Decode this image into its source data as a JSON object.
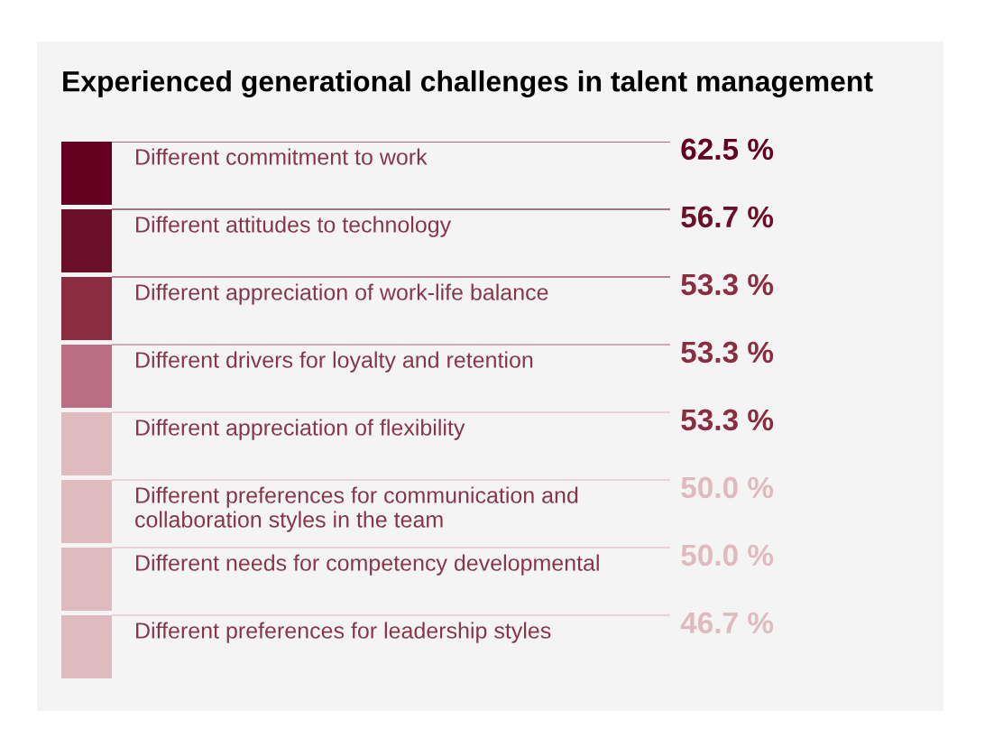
{
  "chart_data": {
    "type": "other",
    "title": "Experienced generational challenges in talent management",
    "categories": [
      "Different commitment to work",
      "Different attitudes to technology",
      "Different appreciation of work-life balance",
      "Different drivers for loyalty and retention",
      "Different appreciation of flexibility",
      "Different preferences for communication and\ncollaboration styles in the team",
      "Different needs for competency developmental",
      "Different preferences for leadership styles"
    ],
    "values": [
      62.5,
      56.7,
      53.3,
      53.3,
      53.3,
      50.0,
      50.0,
      46.7
    ],
    "value_labels": [
      "62.5 %",
      "56.7 %",
      "53.3 %",
      "53.3 %",
      "53.3 %",
      "50.0 %",
      "50.0 %",
      "46.7 %"
    ],
    "colors": [
      "#640020",
      "#6b0f2a",
      "#8a2d40",
      "#bb6f85",
      "#dfbbbf",
      "#dfbbbf",
      "#dfbbbf",
      "#dfbbbf"
    ]
  }
}
